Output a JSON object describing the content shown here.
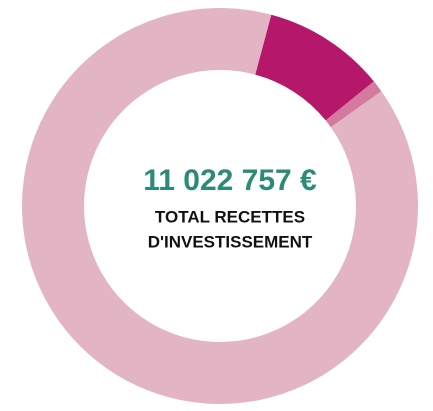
{
  "chart_data": {
    "type": "donut",
    "center_value": "11 022 757 €",
    "center_label": [
      "TOTAL RECETTES",
      "D'INVESTISSEMENT"
    ],
    "categories": [
      null,
      null,
      null
    ],
    "values": [
      10,
      1,
      89
    ],
    "colors": [
      "#b5176a",
      "#d47a9f",
      "#e2b4c4"
    ]
  }
}
